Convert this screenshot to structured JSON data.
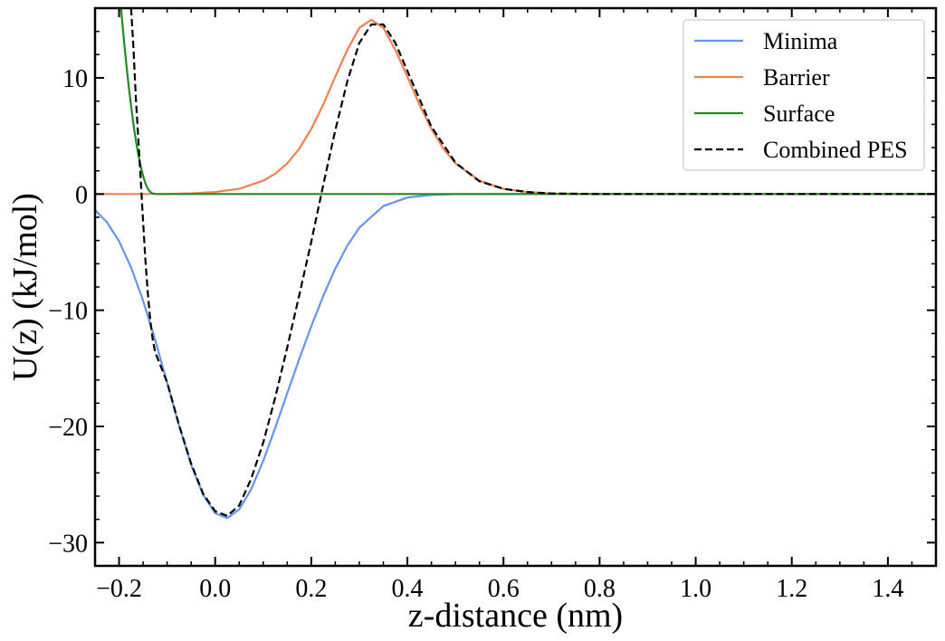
{
  "chart_data": {
    "type": "line",
    "title": "",
    "xlabel": "z-distance (nm)",
    "ylabel": "U(z) (kJ/mol)",
    "xlim": [
      -0.25,
      1.5
    ],
    "ylim": [
      -32,
      16
    ],
    "xticks": [
      -0.2,
      0.0,
      0.2,
      0.4,
      0.6,
      0.8,
      1.0,
      1.2,
      1.4
    ],
    "xtick_labels": [
      "−0.2",
      "0.0",
      "0.2",
      "0.4",
      "0.6",
      "0.8",
      "1.0",
      "1.2",
      "1.4"
    ],
    "yticks": [
      -30,
      -20,
      -10,
      0,
      10
    ],
    "ytick_labels": [
      "−30",
      "−20",
      "−10",
      "0",
      "10"
    ],
    "grid": false,
    "legend_position": "top-right",
    "series": [
      {
        "name": "Minima",
        "color": "#6495ED",
        "dash": "solid",
        "x": [
          -0.25,
          -0.225,
          -0.2,
          -0.175,
          -0.15,
          -0.125,
          -0.1,
          -0.075,
          -0.05,
          -0.025,
          0.0,
          0.025,
          0.05,
          0.075,
          0.1,
          0.125,
          0.15,
          0.175,
          0.2,
          0.225,
          0.25,
          0.275,
          0.3,
          0.35,
          0.4,
          0.45,
          0.5,
          0.6,
          0.8,
          1.0,
          1.2,
          1.4,
          1.5
        ],
        "y": [
          -1.37,
          -2.44,
          -4.06,
          -6.31,
          -9.17,
          -12.55,
          -16.24,
          -19.95,
          -23.3,
          -25.89,
          -27.47,
          -27.89,
          -27.15,
          -25.4,
          -22.96,
          -20.12,
          -17.15,
          -14.2,
          -11.38,
          -8.76,
          -6.42,
          -4.44,
          -2.9,
          -1.03,
          -0.3,
          -0.07,
          -0.01,
          0,
          0,
          0,
          0,
          0,
          0
        ]
      },
      {
        "name": "Barrier",
        "color": "#F08050",
        "dash": "solid",
        "x": [
          -0.25,
          -0.1,
          -0.05,
          0.0,
          0.05,
          0.1,
          0.125,
          0.15,
          0.175,
          0.2,
          0.225,
          0.25,
          0.275,
          0.3,
          0.325,
          0.35,
          0.375,
          0.4,
          0.425,
          0.45,
          0.475,
          0.5,
          0.55,
          0.6,
          0.65,
          0.7,
          0.8,
          1.0,
          1.2,
          1.5
        ],
        "y": [
          0,
          0.01,
          0.06,
          0.17,
          0.45,
          1.15,
          1.75,
          2.64,
          3.91,
          5.6,
          7.7,
          10.1,
          12.4,
          14.3,
          15.0,
          14.3,
          12.4,
          10.1,
          7.7,
          5.6,
          3.91,
          2.64,
          1.15,
          0.45,
          0.17,
          0.05,
          0,
          0,
          0,
          0
        ]
      },
      {
        "name": "Surface",
        "color": "#228B22",
        "dash": "solid",
        "x": [
          -0.196,
          -0.19,
          -0.185,
          -0.18,
          -0.175,
          -0.17,
          -0.165,
          -0.16,
          -0.155,
          -0.15,
          -0.145,
          -0.14,
          -0.135,
          -0.13,
          -0.125,
          -0.12,
          -0.1,
          0.0,
          0.5,
          1.0,
          1.5
        ],
        "y": [
          16,
          13.3,
          11.2,
          9.3,
          7.6,
          6.0,
          4.6,
          3.4,
          2.4,
          1.55,
          0.9,
          0.45,
          0.18,
          0.05,
          0.01,
          0,
          0,
          0,
          0,
          0,
          0
        ]
      },
      {
        "name": "Combined PES",
        "color": "#000000",
        "dash": "dashed",
        "x": [
          -0.175,
          -0.17,
          -0.165,
          -0.16,
          -0.155,
          -0.15,
          -0.145,
          -0.14,
          -0.135,
          -0.13,
          -0.125,
          -0.1,
          -0.075,
          -0.05,
          -0.025,
          0.0,
          0.025,
          0.05,
          0.075,
          0.1,
          0.125,
          0.15,
          0.175,
          0.2,
          0.225,
          0.25,
          0.275,
          0.3,
          0.325,
          0.35,
          0.375,
          0.4,
          0.45,
          0.5,
          0.55,
          0.6,
          0.65,
          0.7,
          0.8,
          1.0,
          1.2,
          1.5
        ],
        "y": [
          16,
          12.5,
          8.2,
          4.8,
          1.3,
          -2.4,
          -5.8,
          -8.6,
          -10.9,
          -12.5,
          -13.6,
          -16.2,
          -19.9,
          -23.2,
          -25.8,
          -27.3,
          -27.7,
          -26.8,
          -24.5,
          -21.4,
          -17.5,
          -13.2,
          -8.7,
          -4.1,
          0.8,
          5.5,
          9.7,
          13.0,
          14.6,
          14.6,
          13.0,
          10.6,
          5.8,
          2.7,
          1.1,
          0.45,
          0.17,
          0.05,
          0,
          0,
          0,
          0
        ]
      }
    ]
  }
}
